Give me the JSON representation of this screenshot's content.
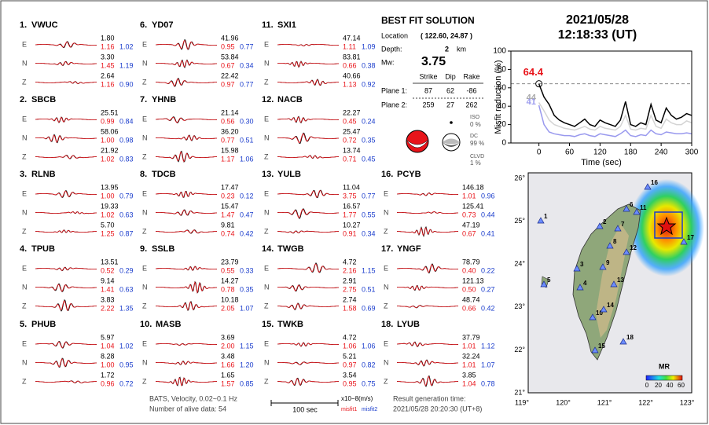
{
  "header": {
    "date": "2021/05/28",
    "time": "12:18:33  (UT)"
  },
  "components": [
    "E",
    "N",
    "Z"
  ],
  "stations": [
    {
      "label": "1.",
      "name": "VWUC",
      "traces": [
        {
          "amp": "1.80",
          "misfit1": "1.16",
          "misfit2": "1.02"
        },
        {
          "amp": "3.30",
          "misfit1": "1.45",
          "misfit2": "1.19"
        },
        {
          "amp": "2.64",
          "misfit1": "1.16",
          "misfit2": "0.90"
        }
      ]
    },
    {
      "label": "2.",
      "name": "SBCB",
      "traces": [
        {
          "amp": "25.51",
          "misfit1": "0.99",
          "misfit2": "0.84"
        },
        {
          "amp": "58.06",
          "misfit1": "1.00",
          "misfit2": "0.98"
        },
        {
          "amp": "21.92",
          "misfit1": "1.02",
          "misfit2": "0.83"
        }
      ]
    },
    {
      "label": "3.",
      "name": "RLNB",
      "traces": [
        {
          "amp": "13.95",
          "misfit1": "1.00",
          "misfit2": "0.79"
        },
        {
          "amp": "19.33",
          "misfit1": "1.02",
          "misfit2": "0.63"
        },
        {
          "amp": "5.70",
          "misfit1": "1.25",
          "misfit2": "0.87"
        }
      ]
    },
    {
      "label": "4.",
      "name": "TPUB",
      "traces": [
        {
          "amp": "13.51",
          "misfit1": "0.52",
          "misfit2": "0.29"
        },
        {
          "amp": "9.14",
          "misfit1": "1.41",
          "misfit2": "0.63"
        },
        {
          "amp": "3.83",
          "misfit1": "2.22",
          "misfit2": "1.35"
        }
      ]
    },
    {
      "label": "5.",
      "name": "PHUB",
      "traces": [
        {
          "amp": "5.97",
          "misfit1": "1.04",
          "misfit2": "1.02"
        },
        {
          "amp": "8.28",
          "misfit1": "1.00",
          "misfit2": "0.95"
        },
        {
          "amp": "1.72",
          "misfit1": "0.96",
          "misfit2": "0.72"
        }
      ]
    },
    {
      "label": "6.",
      "name": "YD07",
      "traces": [
        {
          "amp": "41.96",
          "misfit1": "0.95",
          "misfit2": "0.77"
        },
        {
          "amp": "53.84",
          "misfit1": "0.67",
          "misfit2": "0.34"
        },
        {
          "amp": "22.42",
          "misfit1": "0.97",
          "misfit2": "0.77"
        }
      ]
    },
    {
      "label": "7.",
      "name": "YHNB",
      "traces": [
        {
          "amp": "21.14",
          "misfit1": "0.56",
          "misfit2": "0.30"
        },
        {
          "amp": "36.20",
          "misfit1": "0.77",
          "misfit2": "0.51"
        },
        {
          "amp": "15.98",
          "misfit1": "1.17",
          "misfit2": "1.06"
        }
      ]
    },
    {
      "label": "8.",
      "name": "TDCB",
      "traces": [
        {
          "amp": "17.47",
          "misfit1": "0.23",
          "misfit2": "0.12"
        },
        {
          "amp": "15.47",
          "misfit1": "1.47",
          "misfit2": "0.47"
        },
        {
          "amp": "9.81",
          "misfit1": "0.74",
          "misfit2": "0.42"
        }
      ]
    },
    {
      "label": "9.",
      "name": "SSLB",
      "traces": [
        {
          "amp": "23.79",
          "misfit1": "0.55",
          "misfit2": "0.33"
        },
        {
          "amp": "14.27",
          "misfit1": "0.78",
          "misfit2": "0.35"
        },
        {
          "amp": "10.18",
          "misfit1": "2.05",
          "misfit2": "1.07"
        }
      ]
    },
    {
      "label": "10.",
      "name": "MASB",
      "traces": [
        {
          "amp": "3.69",
          "misfit1": "2.00",
          "misfit2": "1.15"
        },
        {
          "amp": "3.48",
          "misfit1": "1.66",
          "misfit2": "1.20"
        },
        {
          "amp": "1.65",
          "misfit1": "1.57",
          "misfit2": "0.85"
        }
      ]
    },
    {
      "label": "11.",
      "name": "SXI1",
      "traces": [
        {
          "amp": "47.14",
          "misfit1": "1.11",
          "misfit2": "1.09"
        },
        {
          "amp": "83.81",
          "misfit1": "0.66",
          "misfit2": "0.38"
        },
        {
          "amp": "40.66",
          "misfit1": "1.13",
          "misfit2": "0.92"
        }
      ]
    },
    {
      "label": "12.",
      "name": "NACB",
      "traces": [
        {
          "amp": "22.27",
          "misfit1": "0.45",
          "misfit2": "0.24"
        },
        {
          "amp": "25.47",
          "misfit1": "0.72",
          "misfit2": "0.35"
        },
        {
          "amp": "13.74",
          "misfit1": "0.71",
          "misfit2": "0.45"
        }
      ]
    },
    {
      "label": "13.",
      "name": "YULB",
      "traces": [
        {
          "amp": "11.04",
          "misfit1": "3.75",
          "misfit2": "0.77"
        },
        {
          "amp": "16.57",
          "misfit1": "1.77",
          "misfit2": "0.55"
        },
        {
          "amp": "10.27",
          "misfit1": "0.91",
          "misfit2": "0.34"
        }
      ]
    },
    {
      "label": "14.",
      "name": "TWGB",
      "traces": [
        {
          "amp": "4.72",
          "misfit1": "2.16",
          "misfit2": "1.15"
        },
        {
          "amp": "2.91",
          "misfit1": "2.75",
          "misfit2": "0.51"
        },
        {
          "amp": "2.74",
          "misfit1": "1.58",
          "misfit2": "0.69"
        }
      ]
    },
    {
      "label": "15.",
      "name": "TWKB",
      "traces": [
        {
          "amp": "4.72",
          "misfit1": "1.06",
          "misfit2": "1.06"
        },
        {
          "amp": "5.21",
          "misfit1": "0.97",
          "misfit2": "0.82"
        },
        {
          "amp": "3.54",
          "misfit1": "0.95",
          "misfit2": "0.75"
        }
      ]
    },
    {
      "label": "16.",
      "name": "PCYB",
      "traces": [
        {
          "amp": "146.18",
          "misfit1": "1.01",
          "misfit2": "0.96"
        },
        {
          "amp": "125.41",
          "misfit1": "0.73",
          "misfit2": "0.44"
        },
        {
          "amp": "47.19",
          "misfit1": "0.67",
          "misfit2": "0.41"
        }
      ]
    },
    {
      "label": "17.",
      "name": "YNGF",
      "traces": [
        {
          "amp": "78.79",
          "misfit1": "0.40",
          "misfit2": "0.22"
        },
        {
          "amp": "121.13",
          "misfit1": "0.50",
          "misfit2": "0.27"
        },
        {
          "amp": "48.74",
          "misfit1": "0.66",
          "misfit2": "0.42"
        }
      ]
    },
    {
      "label": "18.",
      "name": "LYUB",
      "traces": [
        {
          "amp": "37.79",
          "misfit1": "1.01",
          "misfit2": "1.12"
        },
        {
          "amp": "32.24",
          "misfit1": "1.01",
          "misfit2": "1.07"
        },
        {
          "amp": "3.85",
          "misfit1": "1.04",
          "misfit2": "0.78"
        }
      ]
    }
  ],
  "solution": {
    "title": "BEST FIT SOLUTION",
    "location_label": "Location",
    "location": "( 122.60, 24.87 )",
    "depth_label": "Depth:",
    "depth": "2",
    "depth_unit": "km",
    "mw_label": "Mw:",
    "mw": "3.75",
    "headers": [
      "Strike",
      "Dip",
      "Rake"
    ],
    "planes": [
      {
        "label": "Plane 1:",
        "values": [
          "87",
          "62",
          "-86"
        ]
      },
      {
        "label": "Plane 2:",
        "values": [
          "259",
          "27",
          "262"
        ]
      }
    ],
    "iso_label": "ISO",
    "iso": "0 %",
    "dc_label": "DC",
    "dc": "99 %",
    "clvd_label": "CLVD",
    "clvd": "1 %"
  },
  "chart_data": {
    "type": "line",
    "y_label": "Misfit reduction (%)",
    "x_label": "Time (sec)",
    "x": [
      0,
      10,
      20,
      30,
      40,
      50,
      60,
      70,
      80,
      90,
      100,
      110,
      120,
      130,
      140,
      150,
      160,
      170,
      180,
      190,
      200,
      210,
      220,
      230,
      240,
      250,
      260,
      270,
      280,
      290,
      300
    ],
    "series": [
      {
        "color": "#d4d4d4",
        "values": [
          44,
          35,
          25,
          20,
          18,
          16,
          15,
          14,
          16,
          18,
          15,
          14,
          18,
          16,
          15,
          14,
          18,
          30,
          15,
          14,
          16,
          15,
          30,
          18,
          16,
          26,
          22,
          20,
          20,
          24,
          22
        ]
      },
      {
        "color": "#9999ee",
        "values": [
          41,
          20,
          12,
          10,
          9,
          8,
          8,
          7,
          9,
          10,
          8,
          7,
          10,
          9,
          8,
          7,
          10,
          14,
          8,
          7,
          9,
          8,
          14,
          10,
          9,
          12,
          11,
          10,
          10,
          11,
          10
        ]
      },
      {
        "color": "#000000",
        "values": [
          64.4,
          50,
          42,
          30,
          25,
          22,
          20,
          18,
          22,
          26,
          20,
          18,
          25,
          22,
          20,
          18,
          25,
          45,
          20,
          18,
          22,
          20,
          42,
          25,
          22,
          38,
          30,
          26,
          28,
          32,
          30
        ]
      }
    ],
    "annotations": [
      {
        "text": "64.4",
        "color": "#e8141a"
      },
      {
        "text": "44",
        "color": "#a8a8a8"
      },
      {
        "text": "41",
        "color": "#9b9bee"
      }
    ],
    "xlim": [
      -55,
      300
    ],
    "ylim": [
      0,
      100
    ],
    "xticks": [
      0,
      60,
      120,
      180,
      240,
      300
    ],
    "yticks": [
      0,
      20,
      40,
      60,
      80,
      100
    ]
  },
  "map": {
    "lat_labels": [
      "26°",
      "25°",
      "24°",
      "23°",
      "22°",
      "21°"
    ],
    "lon_labels": [
      "119°",
      "120°",
      "121°",
      "122°",
      "123°"
    ],
    "station_labels": [
      "1",
      "2",
      "3",
      "4",
      "5",
      "6",
      "7",
      "8",
      "9",
      "10",
      "11",
      "12",
      "13",
      "14",
      "15",
      "16",
      "17",
      "18"
    ],
    "colorbar_title": "MR",
    "colorbar_labels": [
      "0",
      "20",
      "40",
      "60"
    ]
  },
  "footer": {
    "filter": "BATS, Velocity, 0.02~0.1 Hz",
    "alive": "Number of alive data: 54",
    "scale": "100 sec",
    "unit": "x10−8(m/s)",
    "misfit1": "misfit1",
    "misfit2": "misfit2",
    "result_label": "Result generation time:",
    "result_time": "2021/05/28 20:20:30 (UT+8)"
  }
}
